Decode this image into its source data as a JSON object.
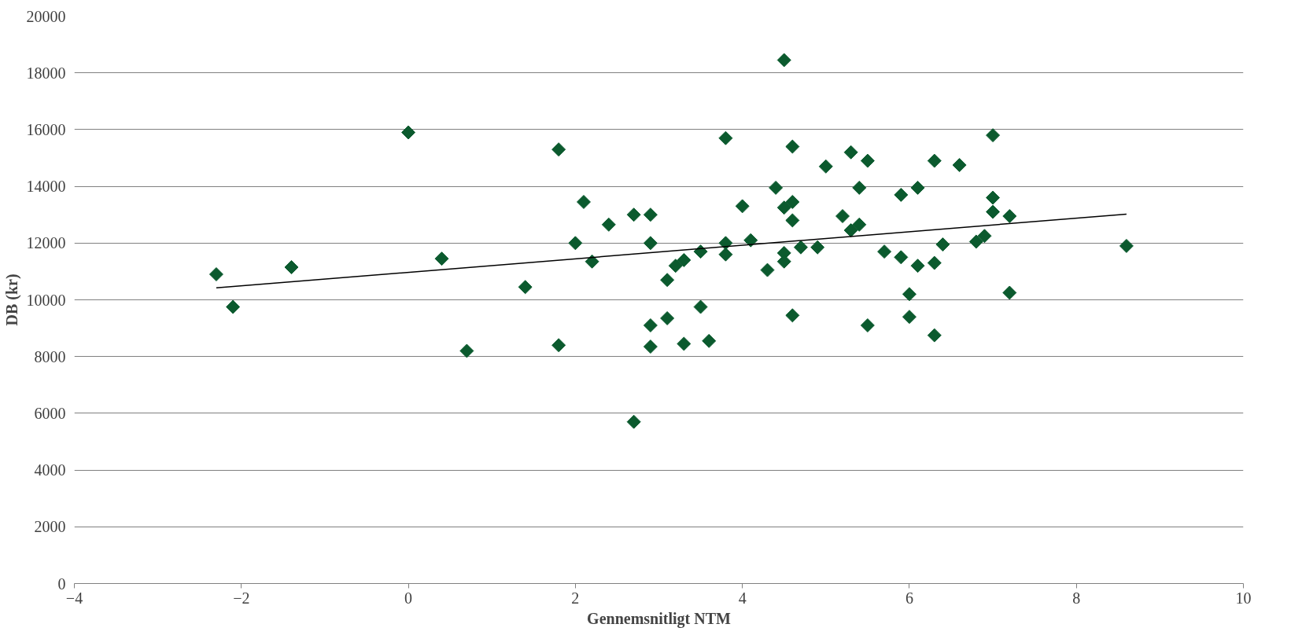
{
  "chart_data": {
    "type": "scatter",
    "xlabel": "Gennemsnitligt NTM",
    "ylabel": "DB (kr)",
    "xlim": [
      -4,
      10
    ],
    "xticks": [
      -4,
      -2,
      0,
      2,
      4,
      6,
      8,
      10
    ],
    "ylim": [
      0,
      20000
    ],
    "yticks": [
      0,
      2000,
      4000,
      6000,
      8000,
      10000,
      12000,
      14000,
      16000,
      18000,
      20000
    ],
    "grid": "y",
    "series": [
      {
        "marker": "diamond",
        "color": "#0b5a2e",
        "x": [
          -2.3,
          -2.1,
          -1.4,
          0,
          0.4,
          0.7,
          1.4,
          1.8,
          1.8,
          2.0,
          2.1,
          2.2,
          2.4,
          2.7,
          2.7,
          2.9,
          2.9,
          2.9,
          2.9,
          3.1,
          3.1,
          3.2,
          3.3,
          3.3,
          3.5,
          3.5,
          3.6,
          3.8,
          3.8,
          3.8,
          4.0,
          4.1,
          4.3,
          4.4,
          4.5,
          4.5,
          4.5,
          4.5,
          4.6,
          4.6,
          4.6,
          4.6,
          4.7,
          4.9,
          5.0,
          5.2,
          5.3,
          5.3,
          5.4,
          5.4,
          5.5,
          5.5,
          5.7,
          5.9,
          5.9,
          6.0,
          6.0,
          6.1,
          6.1,
          6.3,
          6.3,
          6.3,
          6.4,
          6.6,
          6.8,
          6.9,
          7.0,
          7.0,
          7.0,
          7.2,
          7.2,
          8.6
        ],
        "values": [
          10900,
          9750,
          11150,
          15900,
          11450,
          8200,
          10450,
          15300,
          8400,
          12000,
          13450,
          11350,
          12650,
          13000,
          5700,
          13000,
          12000,
          9100,
          8350,
          10700,
          9350,
          11200,
          11400,
          8450,
          11700,
          9750,
          8550,
          15700,
          12000,
          11600,
          13300,
          12100,
          11050,
          13950,
          18450,
          13250,
          11650,
          11350,
          15400,
          13450,
          12800,
          9450,
          11850,
          11850,
          14700,
          12950,
          15200,
          12450,
          13950,
          12650,
          14900,
          9100,
          11700,
          13700,
          11500,
          10200,
          9400,
          13950,
          11200,
          14900,
          11300,
          8750,
          11950,
          14750,
          12050,
          12250,
          15800,
          13600,
          13100,
          12950,
          10250,
          11900
        ]
      },
      {
        "type": "line",
        "color": "#000000",
        "line_style": "solid",
        "x": [
          -2.3,
          8.6
        ],
        "values": [
          10420,
          13020
        ]
      }
    ]
  }
}
